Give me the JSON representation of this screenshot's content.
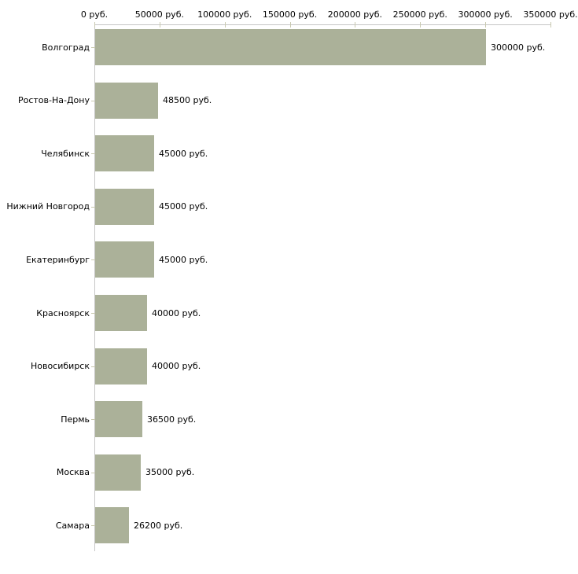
{
  "chart_data": {
    "type": "bar",
    "orientation": "horizontal",
    "categories": [
      "Волгоград",
      "Ростов-На-Дону",
      "Челябинск",
      "Нижний Новгород",
      "Екатеринбург",
      "Красноярск",
      "Новосибирск",
      "Пермь",
      "Москва",
      "Самара"
    ],
    "values": [
      300000,
      48500,
      45000,
      45000,
      45000,
      40000,
      40000,
      36500,
      35000,
      26200
    ],
    "value_labels": [
      "300000 руб.",
      "48500 руб.",
      "45000 руб.",
      "45000 руб.",
      "45000 руб.",
      "40000 руб.",
      "40000 руб.",
      "36500 руб.",
      "35000 руб.",
      "26200 руб."
    ],
    "x_axis": {
      "position": "top",
      "min": 0,
      "max": 350000,
      "tick_step": 50000,
      "tick_labels": [
        "0 руб.",
        "50000 руб.",
        "100000 руб.",
        "150000 руб.",
        "200000 руб.",
        "250000 руб.",
        "300000 руб.",
        "350000 руб."
      ],
      "unit": "руб."
    },
    "grid": "off",
    "legend": "none",
    "colors": {
      "bar": "#ABB199",
      "axis_line": "#C6C6C6",
      "tick": "#C9C9B0",
      "text": "#000000",
      "background": "#FFFFFF"
    }
  }
}
